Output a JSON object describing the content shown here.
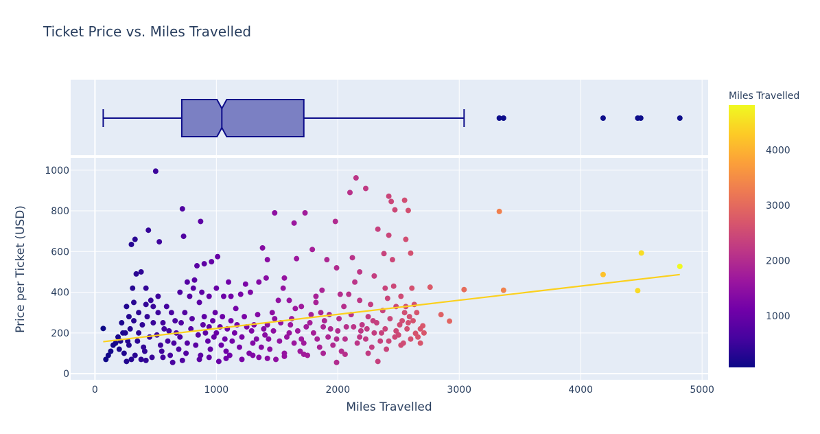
{
  "chart_data": {
    "type": "scatter",
    "title": "Ticket Price vs. Miles Travelled",
    "xlabel": "Miles Travelled",
    "ylabel": "Price per Ticket (USD)",
    "xlim": [
      -200,
      5050
    ],
    "ylim": [
      -30,
      1060
    ],
    "x_ticks": [
      0,
      1000,
      2000,
      3000,
      4000,
      5000
    ],
    "y_ticks": [
      0,
      200,
      400,
      600,
      800,
      1000
    ],
    "colorbar": {
      "title": "Miles Travelled",
      "range": [
        68,
        4817
      ],
      "ticks": [
        1000,
        2000,
        3000,
        4000
      ],
      "colorscale": [
        "#0d0887",
        "#46039f",
        "#7201a8",
        "#9c179e",
        "#bd3786",
        "#d8576b",
        "#ed7953",
        "#fb9f3a",
        "#fdca26",
        "#f0f921"
      ]
    },
    "trendline": {
      "x": [
        68,
        4817
      ],
      "y": [
        157,
        487
      ],
      "color": "#fbd01d"
    },
    "marginal_box": {
      "min": 68,
      "q1": 715,
      "median": 1045,
      "q3": 1720,
      "upper_fence": 3040,
      "notch_low": 1005,
      "notch_high": 1085,
      "outliers": [
        3330,
        3365,
        4185,
        4470,
        4495,
        4817
      ],
      "fill": "#7b80c3",
      "line": "#0d0d8a"
    },
    "points": [
      [
        68,
        222
      ],
      [
        500,
        995
      ],
      [
        720,
        810
      ],
      [
        870,
        748
      ],
      [
        730,
        675
      ],
      [
        440,
        705
      ],
      [
        530,
        648
      ],
      [
        300,
        635
      ],
      [
        330,
        660
      ],
      [
        2150,
        962
      ],
      [
        2230,
        910
      ],
      [
        2100,
        890
      ],
      [
        2420,
        872
      ],
      [
        2550,
        852
      ],
      [
        2440,
        846
      ],
      [
        2470,
        805
      ],
      [
        2580,
        802
      ],
      [
        3330,
        797
      ],
      [
        1480,
        790
      ],
      [
        1730,
        790
      ],
      [
        1640,
        740
      ],
      [
        1980,
        748
      ],
      [
        2330,
        710
      ],
      [
        2420,
        680
      ],
      [
        2560,
        660
      ],
      [
        4500,
        593
      ],
      [
        4817,
        527
      ],
      [
        4185,
        487
      ],
      [
        4470,
        408
      ],
      [
        3040,
        413
      ],
      [
        3365,
        410
      ],
      [
        2760,
        425
      ],
      [
        2920,
        258
      ],
      [
        2850,
        290
      ],
      [
        2700,
        235
      ],
      [
        2640,
        198
      ],
      [
        1010,
        575
      ],
      [
        1380,
        618
      ],
      [
        1790,
        610
      ],
      [
        2380,
        590
      ],
      [
        2600,
        592
      ],
      [
        840,
        530
      ],
      [
        900,
        540
      ],
      [
        960,
        550
      ],
      [
        1420,
        560
      ],
      [
        1660,
        565
      ],
      [
        1910,
        560
      ],
      [
        2120,
        570
      ],
      [
        2450,
        560
      ],
      [
        2330,
        60
      ],
      [
        1990,
        55
      ],
      [
        1490,
        70
      ],
      [
        1020,
        60
      ],
      [
        640,
        55
      ],
      [
        380,
        70
      ],
      [
        90,
        70
      ],
      [
        150,
        140
      ],
      [
        190,
        180
      ],
      [
        220,
        250
      ],
      [
        260,
        330
      ],
      [
        310,
        420
      ],
      [
        340,
        490
      ],
      [
        380,
        500
      ],
      [
        420,
        420
      ],
      [
        460,
        360
      ],
      [
        520,
        300
      ],
      [
        560,
        250
      ],
      [
        610,
        210
      ],
      [
        650,
        150
      ],
      [
        690,
        120
      ],
      [
        740,
        300
      ],
      [
        780,
        380
      ],
      [
        820,
        460
      ],
      [
        860,
        350
      ],
      [
        900,
        280
      ],
      [
        940,
        230
      ],
      [
        980,
        180
      ],
      [
        1040,
        140
      ],
      [
        1080,
        110
      ],
      [
        1120,
        260
      ],
      [
        1160,
        320
      ],
      [
        1200,
        390
      ],
      [
        1240,
        440
      ],
      [
        1290,
        210
      ],
      [
        1330,
        170
      ],
      [
        1370,
        130
      ],
      [
        1420,
        240
      ],
      [
        1460,
        300
      ],
      [
        1510,
        360
      ],
      [
        1550,
        420
      ],
      [
        1600,
        200
      ],
      [
        1640,
        150
      ],
      [
        1690,
        110
      ],
      [
        1740,
        230
      ],
      [
        1780,
        290
      ],
      [
        1820,
        350
      ],
      [
        1870,
        410
      ],
      [
        1920,
        180
      ],
      [
        1960,
        140
      ],
      [
        2010,
        270
      ],
      [
        2050,
        330
      ],
      [
        2090,
        390
      ],
      [
        2140,
        450
      ],
      [
        2190,
        210
      ],
      [
        2230,
        170
      ],
      [
        2280,
        130
      ],
      [
        2320,
        250
      ],
      [
        2370,
        310
      ],
      [
        2410,
        370
      ],
      [
        2460,
        430
      ],
      [
        2500,
        190
      ],
      [
        2540,
        150
      ],
      [
        2590,
        280
      ],
      [
        2630,
        340
      ],
      [
        2680,
        220
      ],
      [
        240,
        100
      ],
      [
        270,
        160
      ],
      [
        290,
        220
      ],
      [
        330,
        90
      ],
      [
        360,
        200
      ],
      [
        400,
        130
      ],
      [
        430,
        280
      ],
      [
        470,
        80
      ],
      [
        510,
        190
      ],
      [
        550,
        110
      ],
      [
        590,
        330
      ],
      [
        620,
        90
      ],
      [
        660,
        260
      ],
      [
        700,
        180
      ],
      [
        750,
        100
      ],
      [
        790,
        220
      ],
      [
        830,
        140
      ],
      [
        870,
        90
      ],
      [
        910,
        200
      ],
      [
        950,
        120
      ],
      [
        990,
        300
      ],
      [
        1030,
        230
      ],
      [
        1070,
        170
      ],
      [
        1110,
        90
      ],
      [
        1150,
        200
      ],
      [
        1190,
        130
      ],
      [
        1230,
        280
      ],
      [
        1270,
        100
      ],
      [
        1310,
        240
      ],
      [
        1350,
        80
      ],
      [
        1400,
        190
      ],
      [
        1440,
        120
      ],
      [
        1480,
        270
      ],
      [
        1520,
        160
      ],
      [
        1560,
        100
      ],
      [
        1610,
        240
      ],
      [
        1650,
        320
      ],
      [
        1700,
        170
      ],
      [
        1750,
        90
      ],
      [
        1800,
        200
      ],
      [
        1850,
        130
      ],
      [
        1890,
        260
      ],
      [
        1940,
        220
      ],
      [
        1990,
        170
      ],
      [
        2030,
        110
      ],
      [
        2070,
        230
      ],
      [
        2110,
        290
      ],
      [
        2160,
        150
      ],
      [
        2200,
        240
      ],
      [
        2250,
        280
      ],
      [
        2300,
        200
      ],
      [
        2350,
        160
      ],
      [
        2390,
        220
      ],
      [
        2430,
        270
      ],
      [
        2470,
        180
      ],
      [
        2510,
        240
      ],
      [
        2550,
        300
      ],
      [
        2600,
        170
      ],
      [
        200,
        120
      ],
      [
        230,
        200
      ],
      [
        280,
        140
      ],
      [
        320,
        260
      ],
      [
        350,
        160
      ],
      [
        390,
        240
      ],
      [
        410,
        110
      ],
      [
        450,
        180
      ],
      [
        480,
        250
      ],
      [
        540,
        140
      ],
      [
        570,
        220
      ],
      [
        600,
        160
      ],
      [
        630,
        300
      ],
      [
        670,
        200
      ],
      [
        710,
        250
      ],
      [
        760,
        150
      ],
      [
        800,
        270
      ],
      [
        850,
        190
      ],
      [
        890,
        240
      ],
      [
        930,
        160
      ],
      [
        970,
        260
      ],
      [
        1000,
        200
      ],
      [
        1050,
        280
      ],
      [
        1090,
        220
      ],
      [
        1130,
        160
      ],
      [
        1170,
        240
      ],
      [
        1210,
        180
      ],
      [
        1250,
        230
      ],
      [
        1300,
        150
      ],
      [
        1340,
        290
      ],
      [
        1390,
        220
      ],
      [
        1430,
        170
      ],
      [
        1470,
        210
      ],
      [
        1530,
        250
      ],
      [
        1580,
        180
      ],
      [
        1620,
        270
      ],
      [
        1670,
        210
      ],
      [
        1720,
        150
      ],
      [
        1770,
        250
      ],
      [
        1830,
        170
      ],
      [
        1880,
        230
      ],
      [
        1930,
        290
      ],
      [
        2000,
        210
      ],
      [
        2060,
        170
      ],
      [
        2130,
        230
      ],
      [
        2180,
        180
      ],
      [
        2240,
        220
      ],
      [
        2290,
        260
      ],
      [
        2360,
        200
      ],
      [
        2420,
        160
      ],
      [
        2480,
        210
      ],
      [
        2530,
        260
      ],
      [
        2570,
        220
      ],
      [
        2620,
        260
      ],
      [
        2660,
        180
      ],
      [
        2710,
        200
      ],
      [
        2480,
        330
      ],
      [
        2520,
        380
      ],
      [
        1120,
        380
      ],
      [
        1280,
        400
      ],
      [
        1350,
        450
      ],
      [
        1410,
        470
      ],
      [
        1560,
        470
      ],
      [
        1600,
        360
      ],
      [
        1700,
        330
      ],
      [
        1820,
        380
      ],
      [
        1860,
        300
      ],
      [
        2020,
        390
      ],
      [
        2180,
        360
      ],
      [
        2270,
        340
      ],
      [
        2390,
        420
      ],
      [
        2300,
        480
      ],
      [
        2180,
        500
      ],
      [
        1990,
        520
      ],
      [
        700,
        400
      ],
      [
        760,
        450
      ],
      [
        810,
        420
      ],
      [
        880,
        400
      ],
      [
        940,
        380
      ],
      [
        1000,
        420
      ],
      [
        1060,
        380
      ],
      [
        1100,
        450
      ],
      [
        520,
        380
      ],
      [
        480,
        330
      ],
      [
        420,
        340
      ],
      [
        360,
        300
      ],
      [
        320,
        350
      ],
      [
        280,
        280
      ],
      [
        250,
        200
      ],
      [
        210,
        160
      ],
      [
        170,
        150
      ],
      [
        130,
        110
      ],
      [
        110,
        90
      ],
      [
        260,
        60
      ],
      [
        300,
        70
      ],
      [
        420,
        65
      ],
      [
        560,
        80
      ],
      [
        720,
        65
      ],
      [
        860,
        70
      ],
      [
        940,
        80
      ],
      [
        1080,
        75
      ],
      [
        1210,
        70
      ],
      [
        1300,
        90
      ],
      [
        1420,
        75
      ],
      [
        1560,
        85
      ],
      [
        1720,
        95
      ],
      [
        1880,
        100
      ],
      [
        2060,
        95
      ],
      [
        2250,
        100
      ],
      [
        2400,
        120
      ],
      [
        2520,
        140
      ],
      [
        2680,
        150
      ],
      [
        2580,
        250
      ],
      [
        2560,
        330
      ],
      [
        2610,
        420
      ],
      [
        2650,
        300
      ]
    ]
  }
}
